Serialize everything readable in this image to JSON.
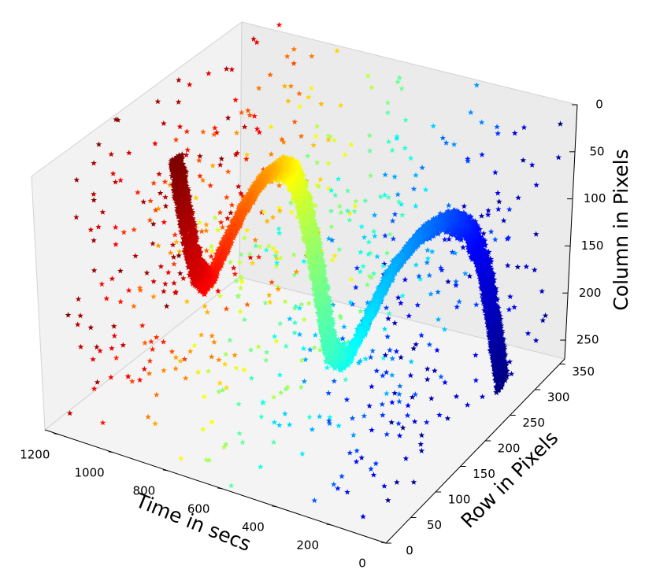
{
  "chart_data": {
    "type": "scatter",
    "projection": "3d",
    "marker": "star",
    "colormap": "jet (color mapped from time: dark blue at 0 s to dark red at ~1250 s)",
    "grid": false,
    "legend": "none",
    "axes": {
      "x": {
        "label": "Time in secs",
        "range": [
          0,
          1250
        ],
        "tick_values": [
          0,
          200,
          400,
          600,
          800,
          1000,
          1200
        ],
        "tick_labels": [
          "0",
          "200",
          "400",
          "600",
          "800",
          "1000",
          "1200"
        ]
      },
      "y": {
        "label": "Row in Pixels",
        "range": [
          0,
          360
        ],
        "tick_values": [
          0,
          50,
          100,
          150,
          200,
          250,
          300,
          350
        ],
        "tick_labels": [
          "0",
          "50",
          "100",
          "150",
          "200",
          "250",
          "300",
          "350"
        ]
      },
      "z": {
        "label": "Column in Pixels",
        "range": [
          0,
          270
        ],
        "inverted": true,
        "tick_values": [
          0,
          50,
          100,
          150,
          200,
          250
        ],
        "tick_labels": [
          "0",
          "50",
          "100",
          "150",
          "200",
          "250"
        ]
      }
    },
    "trajectory": {
      "description": "dense arc-shaped trajectory: column dips from ~225 to ~70 and back in each half of the recording",
      "points": [
        {
          "t": 0,
          "row": 230,
          "col": 225
        },
        {
          "t": 60,
          "row": 240,
          "col": 170
        },
        {
          "t": 120,
          "row": 250,
          "col": 120
        },
        {
          "t": 180,
          "row": 250,
          "col": 90
        },
        {
          "t": 240,
          "row": 240,
          "col": 80
        },
        {
          "t": 300,
          "row": 220,
          "col": 90
        },
        {
          "t": 360,
          "row": 200,
          "col": 120
        },
        {
          "t": 420,
          "row": 190,
          "col": 170
        },
        {
          "t": 480,
          "row": 180,
          "col": 220
        },
        {
          "t": 540,
          "row": 180,
          "col": 215
        },
        {
          "t": 600,
          "row": 190,
          "col": 165
        },
        {
          "t": 660,
          "row": 200,
          "col": 120
        },
        {
          "t": 720,
          "row": 210,
          "col": 85
        },
        {
          "t": 780,
          "row": 220,
          "col": 70
        },
        {
          "t": 840,
          "row": 225,
          "col": 75
        },
        {
          "t": 900,
          "row": 230,
          "col": 95
        },
        {
          "t": 960,
          "row": 230,
          "col": 130
        },
        {
          "t": 1020,
          "row": 230,
          "col": 175
        },
        {
          "t": 1080,
          "row": 232,
          "col": 225
        },
        {
          "t": 1140,
          "row": 240,
          "col": 220
        },
        {
          "t": 1200,
          "row": 245,
          "col": 170
        },
        {
          "t": 1250,
          "row": 250,
          "col": 120
        }
      ]
    },
    "scatter_noise": {
      "description": "~700 sparse outlier points scattered across the full volume, colored by time",
      "count": 700,
      "t_range": [
        0,
        1250
      ],
      "row_range": [
        0,
        360
      ],
      "col_range": [
        0,
        270
      ]
    }
  }
}
